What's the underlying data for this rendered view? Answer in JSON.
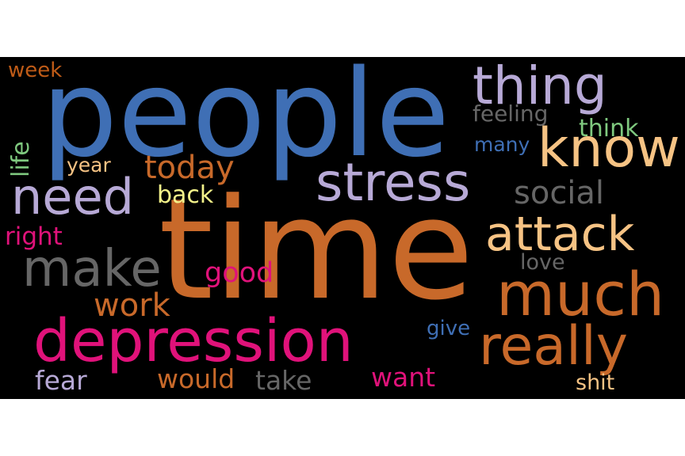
{
  "palette": {
    "background": "#000000",
    "page": "#ffffff",
    "blue": "#3f6fb5",
    "orange": "#c8692a",
    "lavender": "#b7a9d6",
    "peach": "#f6c384",
    "magenta": "#e0127a",
    "gray": "#666666",
    "green": "#7fc97f",
    "yellow": "#f4f38a",
    "brown": "#bf5b17"
  },
  "words": {
    "people": "people",
    "time": "time",
    "depression": "depression",
    "thing": "thing",
    "know": "know",
    "stress": "stress",
    "need": "need",
    "attack": "attack",
    "much": "much",
    "really": "really",
    "make": "make",
    "today": "today",
    "social": "social",
    "work": "work",
    "feeling": "feeling",
    "think": "think",
    "many": "many",
    "back": "back",
    "right": "right",
    "good": "good",
    "love": "love",
    "give": "give",
    "fear": "fear",
    "would": "would",
    "take": "take",
    "want": "want",
    "shit": "shit",
    "year": "year",
    "week": "week",
    "life": "life"
  }
}
